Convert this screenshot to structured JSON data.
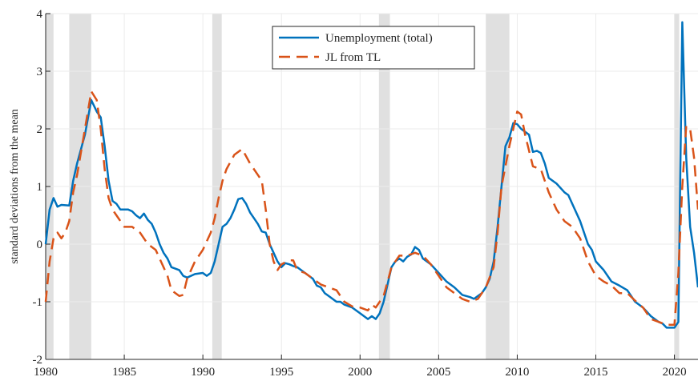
{
  "chart_data": {
    "type": "line",
    "ylabel": "standard deviations from the mean",
    "xlim": [
      1980,
      2021.5
    ],
    "ylim": [
      -2,
      4
    ],
    "xticks": [
      1980,
      1985,
      1990,
      1995,
      2000,
      2005,
      2010,
      2015,
      2020
    ],
    "yticks": [
      -2,
      -1,
      0,
      1,
      2,
      3,
      4
    ],
    "grid": true,
    "legend": "top",
    "recessions": [
      [
        1980.0,
        1980.5
      ],
      [
        1981.5,
        1982.9
      ],
      [
        1990.6,
        1991.2
      ],
      [
        2001.2,
        2001.9
      ],
      [
        2008.0,
        2009.5
      ],
      [
        2020.0,
        2020.3
      ]
    ],
    "series": [
      {
        "name": "Unemployment (total)",
        "color": "#0072bd",
        "dash": false,
        "x": [
          1980,
          1980.25,
          1980.5,
          1980.75,
          1981,
          1981.5,
          1981.75,
          1982,
          1982.5,
          1982.9,
          1983.25,
          1983.5,
          1983.75,
          1984,
          1984.25,
          1984.5,
          1984.75,
          1985.25,
          1985.5,
          1985.75,
          1986,
          1986.25,
          1986.5,
          1986.75,
          1987,
          1987.25,
          1987.5,
          1987.75,
          1988,
          1988.5,
          1988.75,
          1989,
          1989.5,
          1990,
          1990.25,
          1990.5,
          1990.75,
          1991,
          1991.25,
          1991.5,
          1991.75,
          1992,
          1992.25,
          1992.5,
          1992.75,
          1993,
          1993.25,
          1993.5,
          1993.75,
          1994,
          1994.25,
          1994.5,
          1994.75,
          1995,
          1995.25,
          1995.5,
          1995.75,
          1996,
          1996.5,
          1996.75,
          1997,
          1997.25,
          1997.5,
          1997.75,
          1998,
          1998.25,
          1998.5,
          1998.75,
          1999,
          1999.5,
          2000,
          2000.25,
          2000.5,
          2000.75,
          2001,
          2001.25,
          2001.5,
          2001.75,
          2002,
          2002.25,
          2002.5,
          2002.75,
          2003,
          2003.25,
          2003.5,
          2003.75,
          2004,
          2004.5,
          2005,
          2005.5,
          2006,
          2006.5,
          2007,
          2007.25,
          2007.5,
          2007.75,
          2008,
          2008.25,
          2008.5,
          2008.75,
          2009,
          2009.25,
          2009.5,
          2009.75,
          2010,
          2010.25,
          2010.5,
          2010.75,
          2011,
          2011.25,
          2011.5,
          2011.75,
          2012,
          2012.5,
          2013,
          2013.25,
          2013.5,
          2014,
          2014.5,
          2014.75,
          2015,
          2015.5,
          2016,
          2016.5,
          2017,
          2017.5,
          2018,
          2018.5,
          2019,
          2019.25,
          2019.5,
          2020,
          2020.25,
          2020.5,
          2020.75,
          2021,
          2021.25,
          2021.5
        ],
        "values": [
          0,
          0.6,
          0.8,
          0.65,
          0.68,
          0.67,
          1.1,
          1.4,
          1.9,
          2.5,
          2.3,
          2.2,
          1.7,
          1.1,
          0.75,
          0.7,
          0.6,
          0.6,
          0.57,
          0.5,
          0.45,
          0.53,
          0.42,
          0.35,
          0.2,
          0,
          -0.15,
          -0.25,
          -0.4,
          -0.45,
          -0.55,
          -0.58,
          -0.52,
          -0.5,
          -0.55,
          -0.5,
          -0.3,
          0,
          0.3,
          0.35,
          0.45,
          0.6,
          0.78,
          0.8,
          0.7,
          0.55,
          0.45,
          0.35,
          0.22,
          0.2,
          0,
          -0.15,
          -0.3,
          -0.4,
          -0.33,
          -0.35,
          -0.38,
          -0.4,
          -0.5,
          -0.55,
          -0.6,
          -0.72,
          -0.75,
          -0.85,
          -0.9,
          -0.95,
          -1,
          -1,
          -1.05,
          -1.1,
          -1.2,
          -1.25,
          -1.3,
          -1.25,
          -1.3,
          -1.2,
          -1,
          -0.7,
          -0.4,
          -0.3,
          -0.25,
          -0.3,
          -0.22,
          -0.18,
          -0.05,
          -0.1,
          -0.25,
          -0.35,
          -0.5,
          -0.65,
          -0.75,
          -0.88,
          -0.92,
          -0.95,
          -0.9,
          -0.85,
          -0.75,
          -0.6,
          -0.3,
          0.3,
          1,
          1.7,
          1.85,
          2.1,
          2.08,
          2,
          1.95,
          1.9,
          1.6,
          1.62,
          1.58,
          1.4,
          1.15,
          1.05,
          0.9,
          0.85,
          0.7,
          0.4,
          0,
          -0.1,
          -0.3,
          -0.45,
          -0.65,
          -0.72,
          -0.8,
          -1,
          -1.1,
          -1.25,
          -1.35,
          -1.38,
          -1.45,
          -1.45,
          -1.35,
          3.85,
          1.5,
          0.3,
          -0.15,
          -0.75
        ]
      },
      {
        "name": "JL from TL",
        "color": "#d95319",
        "dash": true,
        "x": [
          1980,
          1980.25,
          1980.5,
          1980.75,
          1981,
          1981.25,
          1981.5,
          1981.75,
          1982,
          1982.5,
          1982.9,
          1983.25,
          1983.5,
          1983.75,
          1984,
          1984.25,
          1984.5,
          1985,
          1985.5,
          1986,
          1986.5,
          1987,
          1987.25,
          1987.5,
          1987.75,
          1988,
          1988.5,
          1988.75,
          1989,
          1989.5,
          1990,
          1990.5,
          1990.75,
          1991,
          1991.25,
          1991.5,
          1992,
          1992.5,
          1993,
          1993.5,
          1993.75,
          1994,
          1994.25,
          1994.5,
          1994.75,
          1995,
          1995.5,
          1995.75,
          1996,
          1996.5,
          1997,
          1997.5,
          1998,
          1998.5,
          1999,
          1999.5,
          2000,
          2000.5,
          2000.75,
          2001,
          2001.5,
          2002,
          2002.5,
          2003,
          2003.5,
          2004,
          2004.5,
          2005,
          2005.5,
          2006,
          2006.5,
          2007,
          2007.5,
          2008,
          2008.5,
          2008.75,
          2009,
          2009.5,
          2010,
          2010.25,
          2010.5,
          2011,
          2011.5,
          2012,
          2012.5,
          2013,
          2013.5,
          2014,
          2014.5,
          2015,
          2015.5,
          2016,
          2016.5,
          2017,
          2017.5,
          2018,
          2018.5,
          2019,
          2019.5,
          2020,
          2020.25,
          2020.5,
          2020.75,
          2021,
          2021.25,
          2021.5
        ],
        "values": [
          -1,
          -0.3,
          0.1,
          0.2,
          0.1,
          0.2,
          0.4,
          0.9,
          1.2,
          2,
          2.65,
          2.5,
          2,
          1.3,
          0.8,
          0.6,
          0.5,
          0.3,
          0.3,
          0.2,
          0,
          -0.1,
          -0.25,
          -0.4,
          -0.55,
          -0.8,
          -0.9,
          -0.88,
          -0.6,
          -0.3,
          -0.1,
          0.2,
          0.45,
          0.8,
          1.1,
          1.3,
          1.55,
          1.65,
          1.4,
          1.2,
          1.1,
          0.6,
          0,
          -0.3,
          -0.45,
          -0.35,
          -0.28,
          -0.28,
          -0.45,
          -0.5,
          -0.6,
          -0.7,
          -0.75,
          -0.8,
          -1,
          -1.08,
          -1.1,
          -1.15,
          -1.05,
          -1.1,
          -0.9,
          -0.4,
          -0.2,
          -0.2,
          -0.15,
          -0.2,
          -0.35,
          -0.55,
          -0.75,
          -0.85,
          -0.95,
          -1,
          -0.95,
          -0.75,
          -0.4,
          0.2,
          1,
          1.7,
          2.3,
          2.25,
          1.9,
          1.35,
          1.3,
          0.9,
          0.6,
          0.4,
          0.3,
          0.1,
          -0.3,
          -0.55,
          -0.65,
          -0.72,
          -0.85,
          -0.85,
          -0.98,
          -1.1,
          -1.3,
          -1.35,
          -1.4,
          -1.4,
          -0.5,
          1,
          2.05,
          2,
          1.5,
          0.6
        ]
      }
    ]
  }
}
